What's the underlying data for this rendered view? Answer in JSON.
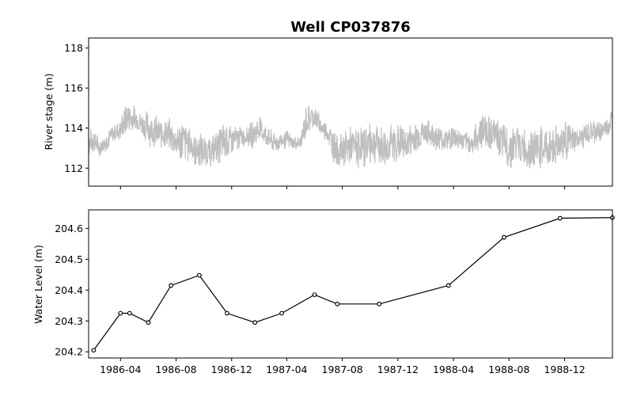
{
  "figure": {
    "title": "Well CP037876"
  },
  "chart_data": [
    {
      "type": "line",
      "ylabel": "River stage (m)",
      "ylim": [
        111.1,
        118.5
      ],
      "yticks": [
        112,
        114,
        116,
        118
      ],
      "xlim": [
        "1986-01-21",
        "1989-03-16"
      ],
      "series": [
        {
          "color": "#bfbfbf",
          "x": [
            "1986-01-21",
            "1986-02-01",
            "1986-02-15",
            "1986-03-01",
            "1986-03-15",
            "1986-04-01",
            "1986-04-15",
            "1986-05-01",
            "1986-05-15",
            "1986-06-01",
            "1986-06-15",
            "1986-07-01",
            "1986-07-15",
            "1986-08-01",
            "1986-08-15",
            "1986-09-01",
            "1986-09-15",
            "1986-10-01",
            "1986-10-15",
            "1986-11-01",
            "1986-11-15",
            "1986-12-01",
            "1986-12-15",
            "1987-01-01",
            "1987-01-15",
            "1987-02-01",
            "1987-02-15",
            "1987-03-01",
            "1987-03-15",
            "1987-04-01",
            "1987-04-15",
            "1987-05-01",
            "1987-05-15",
            "1987-06-01",
            "1987-06-15",
            "1987-07-01",
            "1987-07-15",
            "1987-08-01",
            "1987-08-15",
            "1987-09-01",
            "1987-09-15",
            "1987-10-01",
            "1987-10-15",
            "1987-11-01",
            "1987-11-15",
            "1987-12-01",
            "1987-12-15",
            "1988-01-01",
            "1988-01-15",
            "1988-02-01",
            "1988-02-15",
            "1988-03-01",
            "1988-03-15",
            "1988-04-01",
            "1988-04-15",
            "1988-05-01",
            "1988-05-15",
            "1988-06-01",
            "1988-06-15",
            "1988-07-01",
            "1988-07-15",
            "1988-08-01",
            "1988-08-15",
            "1988-09-01",
            "1988-09-15",
            "1988-10-01",
            "1988-10-15",
            "1988-11-01",
            "1988-11-15",
            "1988-12-01",
            "1988-12-15",
            "1989-01-01",
            "1989-01-15",
            "1989-02-01",
            "1989-02-15",
            "1989-03-01",
            "1989-03-16"
          ],
          "y_low": [
            112.6,
            112.7,
            112.5,
            112.8,
            113.2,
            113.3,
            113.5,
            113.8,
            113.6,
            113.1,
            112.8,
            112.9,
            112.8,
            112.4,
            112.0,
            112.3,
            111.9,
            111.9,
            112.0,
            112.1,
            112.2,
            112.3,
            112.8,
            113.1,
            112.9,
            113.2,
            113.0,
            112.7,
            112.8,
            112.9,
            112.9,
            112.8,
            113.5,
            113.9,
            113.5,
            113.1,
            112.0,
            111.9,
            112.0,
            111.9,
            111.9,
            112.1,
            112.2,
            111.9,
            112.0,
            112.1,
            112.2,
            112.5,
            112.8,
            113.0,
            112.9,
            112.8,
            112.7,
            112.8,
            112.9,
            112.7,
            112.6,
            112.7,
            112.9,
            112.8,
            112.2,
            111.9,
            112.0,
            111.9,
            111.8,
            111.9,
            111.8,
            111.9,
            112.0,
            112.2,
            112.5,
            112.8,
            113.0,
            113.1,
            113.2,
            113.4,
            113.6
          ],
          "y_high": [
            114.0,
            114.1,
            113.5,
            113.9,
            114.2,
            114.6,
            115.5,
            115.2,
            114.9,
            115.0,
            114.8,
            114.5,
            114.6,
            114.3,
            114.7,
            114.1,
            113.9,
            113.8,
            113.6,
            114.1,
            114.5,
            114.3,
            114.2,
            114.1,
            114.4,
            114.8,
            114.2,
            113.9,
            113.8,
            114.0,
            113.6,
            113.7,
            115.4,
            115.3,
            114.6,
            114.4,
            114.0,
            113.8,
            114.2,
            114.1,
            114.3,
            114.5,
            114.4,
            114.1,
            114.3,
            114.5,
            114.2,
            114.3,
            114.6,
            114.5,
            114.4,
            114.2,
            114.1,
            114.3,
            114.0,
            113.8,
            113.9,
            115.1,
            114.9,
            114.6,
            114.4,
            114.2,
            114.3,
            114.1,
            114.0,
            114.2,
            114.1,
            114.3,
            114.4,
            114.6,
            114.2,
            114.0,
            114.3,
            114.5,
            114.4,
            114.6,
            115.1
          ]
        }
      ]
    },
    {
      "type": "line",
      "ylabel": "Water Level (m)",
      "ylim": [
        204.18,
        204.66
      ],
      "yticks": [
        204.2,
        204.3,
        204.4,
        204.5,
        204.6
      ],
      "xlim": [
        "1986-01-21",
        "1989-03-16"
      ],
      "xticks": [
        "1986-04",
        "1986-08",
        "1986-12",
        "1987-04",
        "1987-08",
        "1987-12",
        "1988-04",
        "1988-08",
        "1988-12"
      ],
      "series": [
        {
          "color": "#000000",
          "markers": true,
          "x": [
            "1986-02-01",
            "1986-04-01",
            "1986-04-21",
            "1986-06-01",
            "1986-07-21",
            "1986-09-21",
            "1986-11-21",
            "1987-01-21",
            "1987-03-21",
            "1987-06-01",
            "1987-07-21",
            "1987-10-21",
            "1988-03-21",
            "1988-07-21",
            "1988-11-21",
            "1989-03-16"
          ],
          "y": [
            204.205,
            204.325,
            204.325,
            204.295,
            204.415,
            204.448,
            204.325,
            204.295,
            204.325,
            204.385,
            204.355,
            204.355,
            204.415,
            204.571,
            204.633,
            204.635
          ]
        }
      ]
    }
  ]
}
